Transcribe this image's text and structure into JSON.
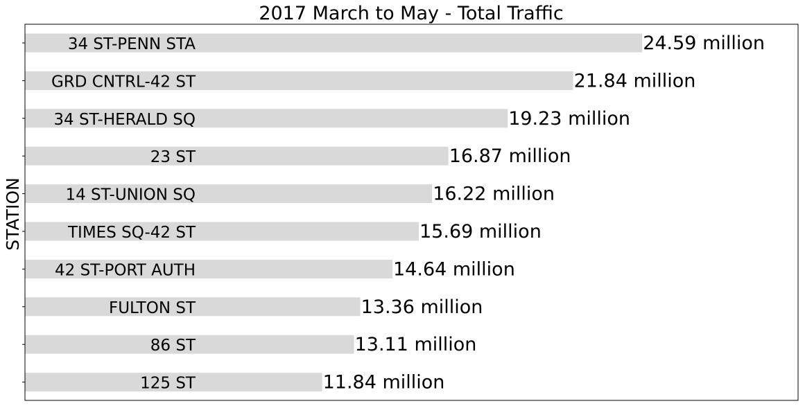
{
  "colors": {
    "bar": "#d9d9d9",
    "text": "#000000",
    "frame": "#000000"
  },
  "chart_data": {
    "type": "bar",
    "orientation": "horizontal",
    "title": "2017 March to May - Total Traffic",
    "ylabel": "STATION",
    "xlabel": "",
    "value_unit": "million",
    "categories": [
      "34 ST-PENN STA",
      "GRD CNTRL-42 ST",
      "34 ST-HERALD SQ",
      "23 ST",
      "14 ST-UNION SQ",
      "TIMES SQ-42 ST",
      "42 ST-PORT AUTH",
      "FULTON ST",
      "86 ST",
      "125 ST"
    ],
    "values": [
      24.59,
      21.84,
      19.23,
      16.87,
      16.22,
      15.69,
      14.64,
      13.36,
      13.11,
      11.84
    ],
    "value_labels": [
      "24.59 million",
      "21.84 million",
      "19.23 million",
      "16.87 million",
      "16.22 million",
      "15.69 million",
      "14.64 million",
      "13.36 million",
      "13.11 million",
      "11.84 million"
    ],
    "xlim": [
      0,
      30.8
    ],
    "grid": false,
    "legend": "none",
    "x_tick_labels_shown": false
  }
}
